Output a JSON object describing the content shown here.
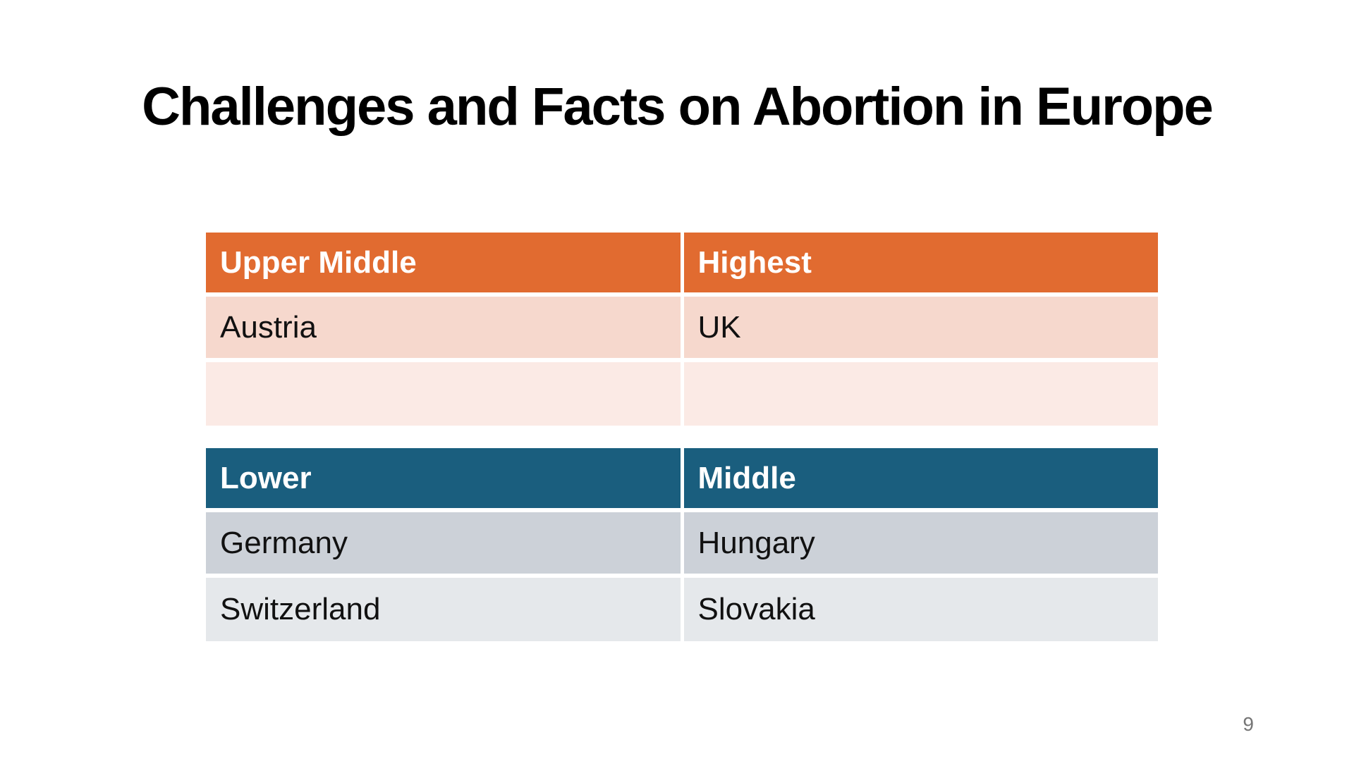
{
  "slide": {
    "title": "Challenges and Facts on Abortion in Europe",
    "page_number": "9"
  },
  "colors": {
    "table1_header_bg": "#E16B30",
    "table1_row1_bg": "#F6D8CD",
    "table1_row2_bg": "#FBEAE5",
    "table2_header_bg": "#1A5E7E",
    "table2_row1_bg": "#CCD1D8",
    "table2_row2_bg": "#E5E8EB",
    "header_text": "#FFFFFF",
    "body_text": "#111111",
    "page_number_text": "#757575"
  },
  "tables": [
    {
      "columns": [
        "Upper Middle",
        "Highest"
      ],
      "rows": [
        [
          "Austria",
          "UK"
        ],
        [
          "",
          ""
        ]
      ]
    },
    {
      "columns": [
        "Lower",
        "Middle"
      ],
      "rows": [
        [
          "Germany",
          "Hungary"
        ],
        [
          "Switzerland",
          "Slovakia"
        ]
      ]
    }
  ]
}
